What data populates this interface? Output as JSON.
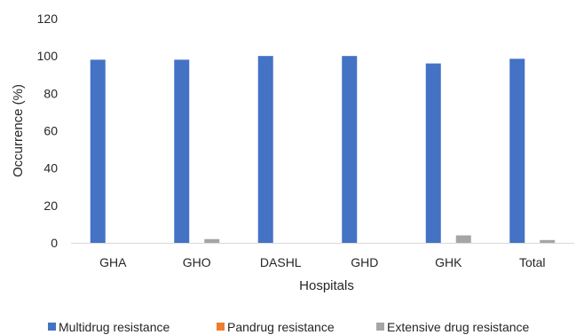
{
  "chart_data": {
    "type": "bar",
    "title": "",
    "xlabel": "Hospitals",
    "ylabel": "Occurrence (%)",
    "ylim": [
      0,
      120
    ],
    "yticks": [
      0,
      20,
      40,
      60,
      80,
      100,
      120
    ],
    "grid": false,
    "legend_position": "bottom",
    "categories": [
      "GHA",
      "GHO",
      "DASHL",
      "GHD",
      "GHK",
      "Total"
    ],
    "series": [
      {
        "name": "Multidrug resistance",
        "color": "#4472C4",
        "values": [
          98,
          98,
          100,
          100,
          96,
          98.5
        ]
      },
      {
        "name": "Pandrug resistance",
        "color": "#ED7D31",
        "values": [
          0,
          0,
          0,
          0,
          0,
          0
        ]
      },
      {
        "name": "Extensive drug resistance",
        "color": "#A5A5A5",
        "values": [
          0,
          2,
          0,
          0,
          4,
          1.5
        ]
      }
    ]
  }
}
